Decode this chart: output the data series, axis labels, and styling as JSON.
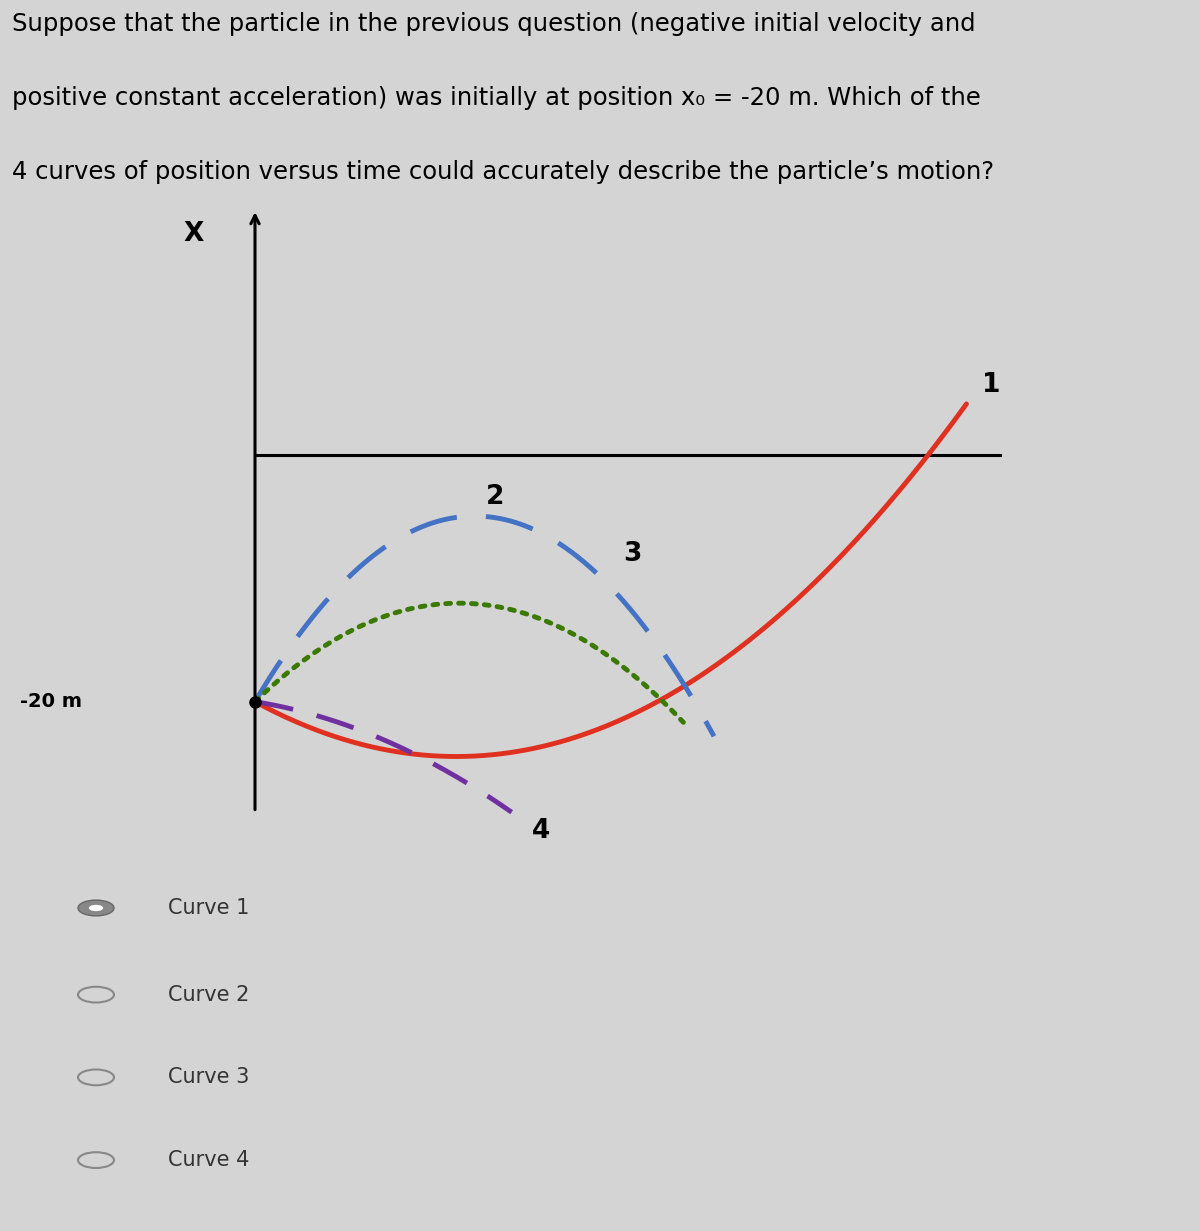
{
  "title_line1": "Suppose that the particle in the previous question (negative initial velocity and",
  "title_line2": "positive constant acceleration) was initially at position x₀ = -20 m. Which of the",
  "title_line3": "4 curves of position versus time could accurately describe the particle’s motion?",
  "title_fontsize": 17.5,
  "bg_color": "#d4d4d4",
  "x_label": "X",
  "curve1_color": "#e03020",
  "curve2_color": "#4472c4",
  "curve3_color": "#3a7a00",
  "curve4_color": "#7030a0",
  "radio_options": [
    "Curve 1",
    "Curve 2",
    "Curve 3",
    "Curve 4"
  ],
  "label_fontsize": 19,
  "radio_fontsize": 15,
  "neg20_label": "-20 m"
}
